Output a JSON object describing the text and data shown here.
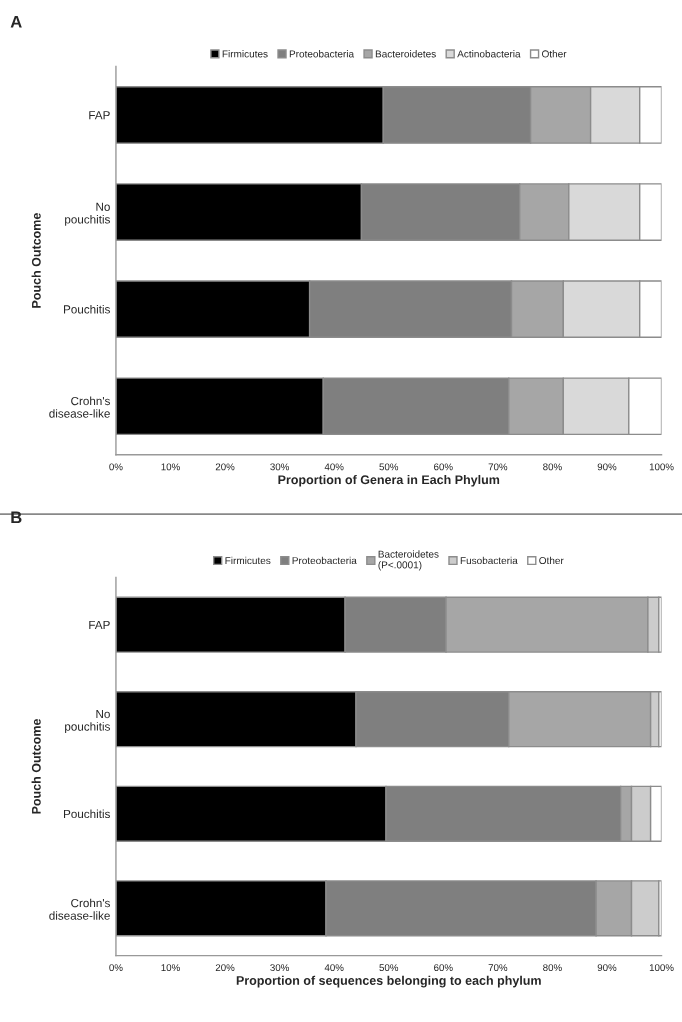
{
  "chart_data": [
    {
      "type": "bar",
      "orientation": "horizontal",
      "stacked": true,
      "annotations": [
        "A"
      ],
      "xlabel": "Proportion of Genera in Each Phylum",
      "ylabel": "Pouch Outcome",
      "categories": [
        "FAP",
        "No\npouchitis",
        "Pouchitis",
        "Crohn's\ndisease-like"
      ],
      "legend": "top",
      "grid": false,
      "xlim": [
        0,
        100
      ],
      "xticks": [
        {
          "value": 0,
          "label": "0%"
        },
        {
          "value": 10,
          "label": "10%"
        },
        {
          "value": 20,
          "label": "20%"
        },
        {
          "value": 30,
          "label": "30%"
        },
        {
          "value": 40,
          "label": "40%"
        },
        {
          "value": 50,
          "label": "50%"
        },
        {
          "value": 60,
          "label": "60%"
        },
        {
          "value": 70,
          "label": "70%"
        },
        {
          "value": 80,
          "label": "80%"
        },
        {
          "value": 90,
          "label": "90%"
        },
        {
          "value": 100,
          "label": "100%"
        }
      ],
      "series": [
        {
          "name": "Firmicutes",
          "color": "#000000",
          "values": [
            49,
            45,
            35.5,
            38
          ]
        },
        {
          "name": "Proteobacteria",
          "color": "#7f7f7f",
          "values": [
            27,
            29,
            37,
            34
          ]
        },
        {
          "name": "Bacteroidetes",
          "color": "#a6a6a6",
          "values": [
            11,
            9,
            9.5,
            10
          ]
        },
        {
          "name": "Actinobacteria",
          "color": "#d9d9d9",
          "values": [
            9,
            13,
            14,
            12
          ]
        },
        {
          "name": "Other",
          "color": "#ffffff",
          "values": [
            4,
            4,
            4,
            6
          ]
        }
      ]
    },
    {
      "type": "bar",
      "orientation": "horizontal",
      "stacked": true,
      "annotations": [
        "B"
      ],
      "xlabel": "Proportion of sequences belonging to each phylum",
      "ylabel": "Pouch Outcome",
      "categories": [
        "FAP",
        "No\npouchitis",
        "Pouchitis",
        "Crohn's\ndisease-like"
      ],
      "legend": "top",
      "grid": false,
      "xlim": [
        0,
        100
      ],
      "xticks": [
        {
          "value": 0,
          "label": "0%"
        },
        {
          "value": 10,
          "label": "10%"
        },
        {
          "value": 20,
          "label": "20%"
        },
        {
          "value": 30,
          "label": "30%"
        },
        {
          "value": 40,
          "label": "40%"
        },
        {
          "value": 50,
          "label": "50%"
        },
        {
          "value": 60,
          "label": "60%"
        },
        {
          "value": 70,
          "label": "70%"
        },
        {
          "value": 80,
          "label": "80%"
        },
        {
          "value": 90,
          "label": "90%"
        },
        {
          "value": 100,
          "label": "100%"
        }
      ],
      "series": [
        {
          "name": "Firmicutes",
          "color": "#000000",
          "values": [
            42,
            44,
            49.5,
            38.5
          ]
        },
        {
          "name": "Proteobacteria",
          "color": "#7f7f7f",
          "values": [
            18.5,
            28,
            43,
            49.5
          ]
        },
        {
          "name": "Bacteroidetes\n(P<.0001)",
          "color": "#a6a6a6",
          "values": [
            37,
            26,
            2,
            6.5
          ]
        },
        {
          "name": "Fusobacteria",
          "color": "#cccccc",
          "values": [
            2,
            1.5,
            3.5,
            5
          ]
        },
        {
          "name": "Other",
          "color": "#ffffff",
          "values": [
            0.5,
            0.5,
            2,
            0.5
          ]
        }
      ]
    }
  ]
}
